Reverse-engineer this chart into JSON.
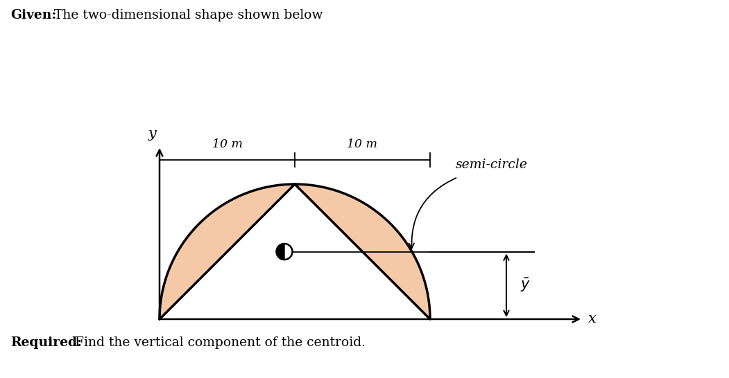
{
  "fig_width": 10.51,
  "fig_height": 5.46,
  "dpi": 100,
  "background_color": "#ffffff",
  "given_text": "Given:",
  "given_rest": " The two-dimensional shape shown below",
  "required_text": "Required:",
  "required_rest": " Find the vertical component of the centroid.",
  "shape_fill_color": "#f5c9a8",
  "shape_edge_color": "#000000",
  "shape_linewidth": 2.5,
  "label_10m_left": "10 m",
  "label_10m_right": "10 m",
  "label_semicircle": "semi-circle",
  "label_x": "x",
  "label_y": "y"
}
